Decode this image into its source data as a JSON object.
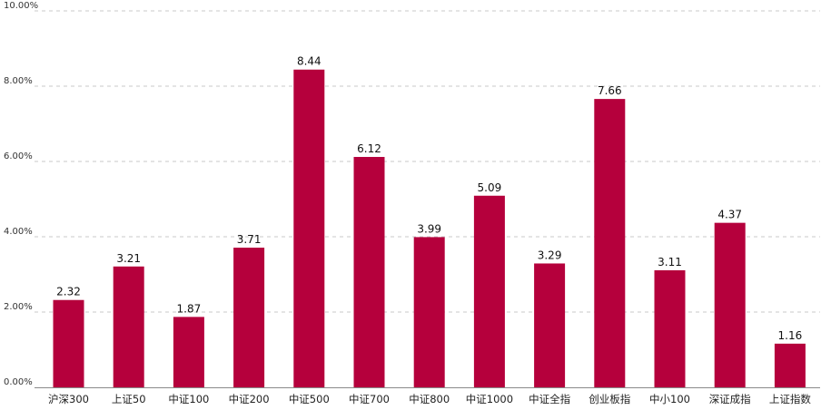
{
  "chart_data": {
    "type": "bar",
    "categories": [
      "沪深300",
      "上证50",
      "中证100",
      "中证200",
      "中证500",
      "中证700",
      "中证800",
      "中证1000",
      "中证全指",
      "创业板指",
      "中小100",
      "深证成指",
      "上证指数"
    ],
    "values": [
      2.32,
      3.21,
      1.87,
      3.71,
      8.44,
      6.12,
      3.99,
      5.09,
      3.29,
      7.66,
      3.11,
      4.37,
      1.16
    ],
    "data_labels": [
      "2.32",
      "3.21",
      "1.87",
      "3.71",
      "8.44",
      "6.12",
      "3.99",
      "5.09",
      "3.29",
      "7.66",
      "3.11",
      "4.37",
      "1.16"
    ],
    "yticks": [
      "0.00%",
      "2.00%",
      "4.00%",
      "6.00%",
      "8.00%",
      "10.00%"
    ],
    "ylim": [
      0,
      10
    ],
    "title": "",
    "xlabel": "",
    "ylabel": "",
    "grid": "horizontal-dashed",
    "legend": "none",
    "bar_color": "#b5003c"
  }
}
